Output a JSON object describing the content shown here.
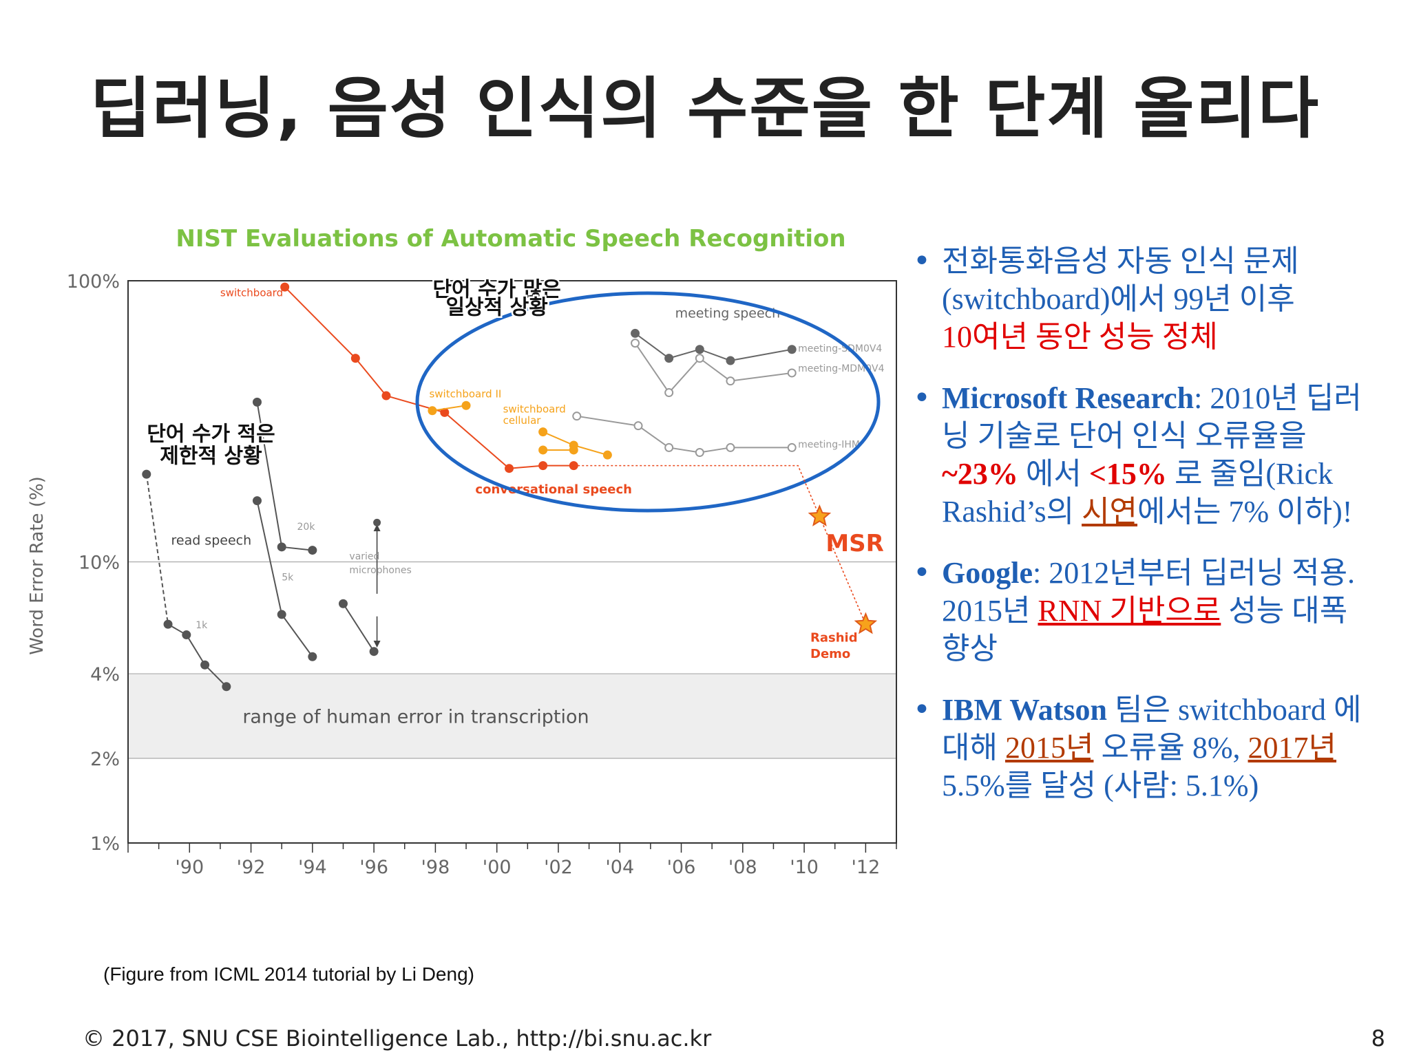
{
  "slide": {
    "title": "딥러닝, 음성 인식의 수준을 한 단계 올리다",
    "caption": "(Figure from ICML 2014 tutorial by Li Deng)",
    "footer": "© 2017, SNU CSE Biointelligence Lab., http://bi.snu.ac.kr",
    "page_number": "8"
  },
  "chart_data": {
    "type": "line",
    "title": "NIST Evaluations of Automatic Speech Recognition",
    "ylabel": "Word Error Rate (%)",
    "y_scale": "log",
    "ylim": [
      1,
      100
    ],
    "xlim": [
      1988,
      2013
    ],
    "ytick_labels": [
      {
        "v": 100,
        "label": "100%"
      },
      {
        "v": 10,
        "label": "10%"
      },
      {
        "v": 4,
        "label": "4%"
      },
      {
        "v": 2,
        "label": "2%"
      },
      {
        "v": 1,
        "label": "1%"
      }
    ],
    "xtick_labels": [
      {
        "v": 1990,
        "label": "'90"
      },
      {
        "v": 1992,
        "label": "'92"
      },
      {
        "v": 1994,
        "label": "'94"
      },
      {
        "v": 1996,
        "label": "'96"
      },
      {
        "v": 1998,
        "label": "'98"
      },
      {
        "v": 2000,
        "label": "'00"
      },
      {
        "v": 2002,
        "label": "'02"
      },
      {
        "v": 2004,
        "label": "'04"
      },
      {
        "v": 2006,
        "label": "'06"
      },
      {
        "v": 2008,
        "label": "'08"
      },
      {
        "v": 2010,
        "label": "'10"
      },
      {
        "v": 2012,
        "label": "'12"
      }
    ],
    "human_band": {
      "range": [
        2,
        4
      ],
      "label": "range of human error in transcription",
      "color": "#eeeeee"
    },
    "series": [
      {
        "name": "switchboard",
        "color": "#ea4a1e",
        "filled": true,
        "x": [
          1993.1,
          1995.4,
          1996.4,
          1998.3,
          2000.4,
          2001.5,
          2002.5
        ],
        "y": [
          95,
          53,
          39,
          34,
          21.5,
          22,
          22
        ]
      },
      {
        "name": "switchboard II",
        "color": "#f5a21a",
        "filled": true,
        "x": [
          1997.9,
          1999.0
        ],
        "y": [
          34.5,
          36
        ]
      },
      {
        "name": "switchboard cellular",
        "color": "#f5a21a",
        "filled": true,
        "x": [
          2001.5,
          2002.5,
          2003.6
        ],
        "y": [
          29,
          26,
          24
        ]
      },
      {
        "name": "",
        "color": "#f5a21a",
        "filled": true,
        "x": [
          2001.5,
          2002.5
        ],
        "y": [
          25,
          25
        ]
      },
      {
        "name": "meeting-SDM0V4",
        "color": "#666666",
        "filled": true,
        "x": [
          2004.5,
          2005.6,
          2006.6,
          2007.6,
          2009.6
        ],
        "y": [
          65,
          53,
          57,
          52,
          57
        ]
      },
      {
        "name": "meeting-MDM0V4",
        "color": "#999999",
        "filled": false,
        "x": [
          2004.5,
          2005.6,
          2006.6,
          2007.6,
          2009.6
        ],
        "y": [
          60,
          40,
          53,
          44,
          47
        ]
      },
      {
        "name": "meeting-IHM",
        "color": "#999999",
        "filled": false,
        "x": [
          2002.6,
          2004.6,
          2005.6,
          2006.6,
          2007.6,
          2009.6
        ],
        "y": [
          33,
          30.5,
          25.5,
          24.5,
          25.5,
          25.5
        ]
      },
      {
        "name": "read speech 1k",
        "color": "#555555",
        "filled": true,
        "dashed_first": true,
        "x": [
          1988.6,
          1989.3,
          1989.9,
          1990.5,
          1991.2
        ],
        "y": [
          20.5,
          6,
          5.5,
          4.3,
          3.6
        ]
      },
      {
        "name": "read speech 5k",
        "color": "#555555",
        "filled": true,
        "x": [
          1992.2,
          1993.0,
          1994.0
        ],
        "y": [
          16.5,
          6.5,
          4.6
        ]
      },
      {
        "name": "read speech 20k",
        "color": "#555555",
        "filled": true,
        "x": [
          1992.2,
          1993.0,
          1994.0
        ],
        "y": [
          37,
          11.3,
          11
        ]
      },
      {
        "name": "varied microphones",
        "color": "#555555",
        "filled": true,
        "x": [
          1995.0,
          1996.0
        ],
        "y": [
          7.1,
          4.8
        ]
      }
    ],
    "annotations": [
      {
        "text": "switchboard",
        "x": 1991.0,
        "y": 88,
        "color": "#ea4a1e",
        "size": 15
      },
      {
        "text": "switchboard II",
        "x": 1997.8,
        "y": 38.5,
        "color": "#f5a21a",
        "size": 15
      },
      {
        "text": "switchboard",
        "x": 2000.2,
        "y": 34,
        "color": "#f5a21a",
        "size": 15
      },
      {
        "text": "cellular",
        "x": 2000.2,
        "y": 31,
        "color": "#f5a21a",
        "size": 15
      },
      {
        "text": "conversational speech",
        "x": 1999.3,
        "y": 17.5,
        "color": "#ea4a1e",
        "size": 18,
        "bold": true
      },
      {
        "text": "meeting speech",
        "x": 2005.8,
        "y": 74,
        "color": "#666666",
        "size": 19
      },
      {
        "text": "meeting-SDM0V4",
        "x": 2009.8,
        "y": 56,
        "color": "#999999",
        "size": 14
      },
      {
        "text": "meeting-MDM0V4",
        "x": 2009.8,
        "y": 47.5,
        "color": "#999999",
        "size": 14
      },
      {
        "text": "meeting-IHM",
        "x": 2009.8,
        "y": 25.5,
        "color": "#999999",
        "size": 14
      },
      {
        "text": "read speech",
        "x": 1989.4,
        "y": 11.5,
        "color": "#444444",
        "size": 19
      },
      {
        "text": "1k",
        "x": 1990.2,
        "y": 5.8,
        "color": "#999999",
        "size": 14
      },
      {
        "text": "5k",
        "x": 1993.0,
        "y": 8.6,
        "color": "#999999",
        "size": 14
      },
      {
        "text": "20k",
        "x": 1993.5,
        "y": 13,
        "color": "#999999",
        "size": 14
      },
      {
        "text": "varied",
        "x": 1995.2,
        "y": 10.2,
        "color": "#999999",
        "size": 14
      },
      {
        "text": "microphones",
        "x": 1995.2,
        "y": 9.1,
        "color": "#999999",
        "size": 14
      },
      {
        "text": "MSR",
        "x": 2010.7,
        "y": 10.9,
        "color": "#ea4a1e",
        "size": 34,
        "bold": true
      },
      {
        "text": "Rashid",
        "x": 2010.2,
        "y": 5.2,
        "color": "#ea4a1e",
        "size": 18,
        "bold": true
      },
      {
        "text": "Demo",
        "x": 2010.2,
        "y": 4.55,
        "color": "#ea4a1e",
        "size": 18,
        "bold": true
      }
    ],
    "stars": [
      {
        "x": 2010.5,
        "y": 14.5
      },
      {
        "x": 2012.0,
        "y": 6.0
      }
    ],
    "callouts": [
      {
        "text": "단어 수가 많은",
        "x": 2000.0,
        "y": 88
      },
      {
        "text": "일상적 상황",
        "x": 2000.0,
        "y": 76
      },
      {
        "text": "단어 수가 적은",
        "x": 1990.7,
        "y": 27
      },
      {
        "text": "제한적 상황",
        "x": 1990.7,
        "y": 22.5
      }
    ]
  },
  "bullets": {
    "b1": {
      "l1": "전화통화음성 자동 인식 문제",
      "l2": "(switchboard)에서 99년 이후",
      "l3": "10여년 동안 성능 정체"
    },
    "b2": {
      "bold": "Microsoft Research",
      "t1": ": 2010년 딥러",
      "l2": "닝 기술로 단어 인식 오류율을",
      "v1": "~23%",
      "t2": " 에서 ",
      "v2": "<15%",
      "t3": " 로 줄임(Rick",
      "t4": "Rashid’s의 ",
      "link": "시연",
      "t5": "에서는 7% 이하)!"
    },
    "b3": {
      "bold": "Google",
      "t1": ": 2012년부터 딥러닝 적용.",
      "t2": "2015년 ",
      "link": "RNN 기반으로",
      "t3": " 성능 대폭",
      "t4": "향상"
    },
    "b4": {
      "bold": "IBM Watson",
      "t1": " 팀은 switchboard 에",
      "t2": "대해 ",
      "link1": "2015년",
      "t3": " 오류율 8%, ",
      "link2": "2017년",
      "t4": "5.5%를 달성 (사람: 5.1%)"
    }
  }
}
